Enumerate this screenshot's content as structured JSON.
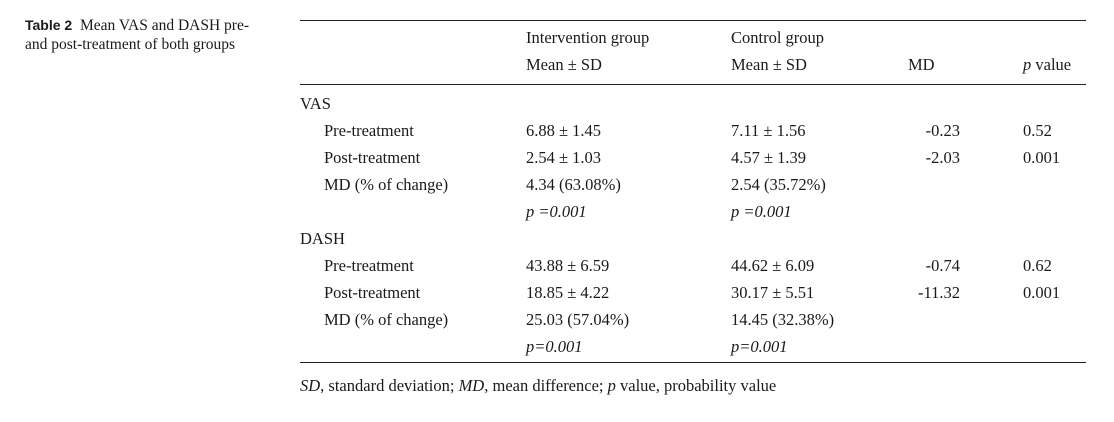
{
  "caption": {
    "label": "Table 2",
    "text": "Mean VAS and DASH pre- and post-treatment of both groups"
  },
  "header": {
    "intervention": "Intervention group",
    "control": "Control group",
    "mean_sd_1": "Mean ± SD",
    "mean_sd_2": "Mean ± SD",
    "md": "MD",
    "p_italic": "p",
    "p_rest": " value"
  },
  "vas": {
    "title": "VAS",
    "pre": {
      "label": "Pre-treatment",
      "int": "6.88 ± 1.45",
      "ctl": "7.11 ± 1.56",
      "md": "-0.23",
      "p": "0.52"
    },
    "post": {
      "label": "Post-treatment",
      "int": "2.54 ± 1.03",
      "ctl": "4.57 ± 1.39",
      "md": "-2.03",
      "p": "0.001"
    },
    "change": {
      "label": "MD (% of change)",
      "int": "4.34 (63.08%)",
      "ctl": "2.54 (35.72%)"
    },
    "pval": {
      "int": "p =0.001",
      "ctl": "p =0.001"
    }
  },
  "dash": {
    "title": "DASH",
    "pre": {
      "label": "Pre-treatment",
      "int": "43.88 ± 6.59",
      "ctl": "44.62 ± 6.09",
      "md": "-0.74",
      "p": "0.62"
    },
    "post": {
      "label": "Post-treatment",
      "int": "18.85 ± 4.22",
      "ctl": "30.17 ± 5.51",
      "md": "-11.32",
      "p": "0.001"
    },
    "change": {
      "label": "MD (% of change)",
      "int": "25.03 (57.04%)",
      "ctl": "14.45 (32.38%)"
    },
    "pval": {
      "int": "p=0.001",
      "ctl": "p=0.001"
    }
  },
  "footnote": {
    "sd_abbr": "SD",
    "sd_text": ", standard deviation; ",
    "md_abbr": "MD",
    "md_text": ", mean difference; ",
    "p_abbr": "p",
    "p_text": " value, probability value"
  }
}
